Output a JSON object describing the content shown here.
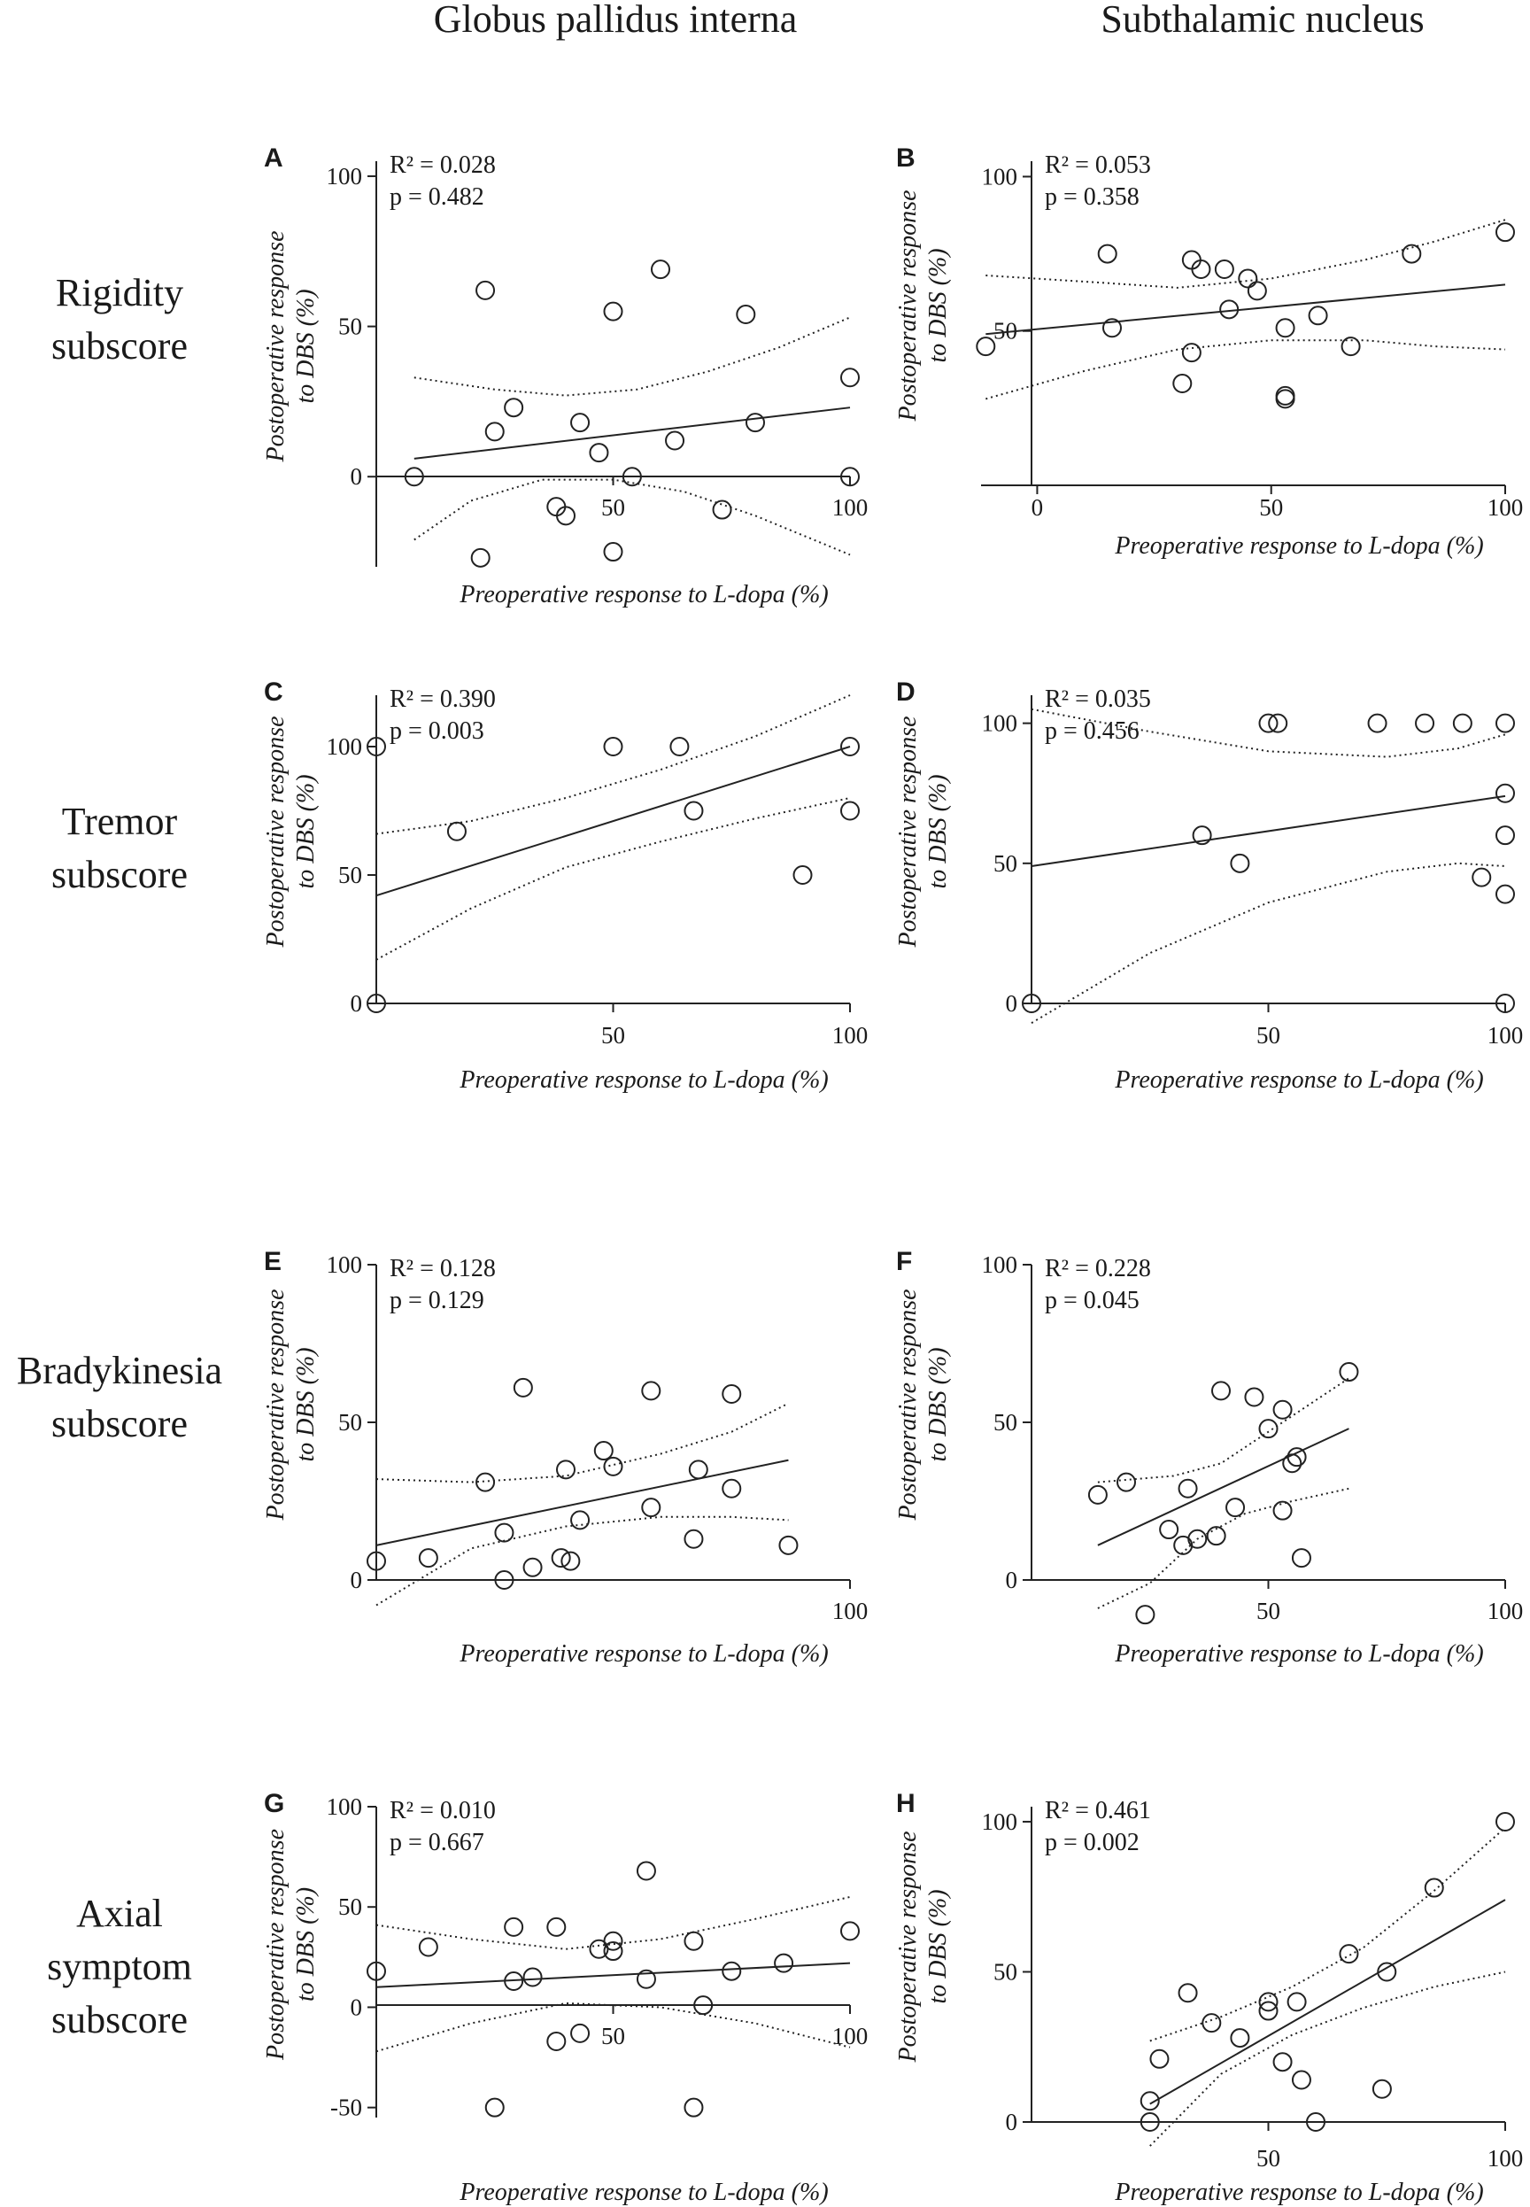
{
  "figure": {
    "column_titles": [
      "Globus pallidus interna",
      "Subthalamic nucleus"
    ],
    "row_titles": [
      [
        "Rigidity",
        "subscore"
      ],
      [
        "Tremor",
        "subscore"
      ],
      [
        "Bradykinesia",
        "subscore"
      ],
      [
        "Axial",
        "symptom",
        "subscore"
      ]
    ]
  },
  "chart_data": [
    {
      "panel": "A",
      "type": "scatter",
      "stat_r2": "R² = 0.028",
      "stat_p": "p = 0.482",
      "xlabel": "Preoperative response to L-dopa (%)",
      "ylabel": [
        "Postoperative response",
        "to DBS (%)"
      ],
      "xlim": [
        0,
        100
      ],
      "ylim": [
        -30,
        105
      ],
      "xticks": [
        50,
        100
      ],
      "yticks": [
        0,
        50,
        100
      ],
      "points": [
        [
          8,
          0
        ],
        [
          22,
          -27
        ],
        [
          23,
          62
        ],
        [
          25,
          15
        ],
        [
          29,
          23
        ],
        [
          38,
          -10
        ],
        [
          40,
          -13
        ],
        [
          43,
          18
        ],
        [
          47,
          8
        ],
        [
          50,
          -25
        ],
        [
          50,
          55
        ],
        [
          54,
          0
        ],
        [
          60,
          69
        ],
        [
          63,
          12
        ],
        [
          73,
          -11
        ],
        [
          78,
          54
        ],
        [
          80,
          18
        ],
        [
          100,
          33
        ],
        [
          100,
          0
        ]
      ],
      "fit": [
        [
          8,
          6
        ],
        [
          100,
          23
        ]
      ],
      "ci_upper": [
        [
          8,
          33
        ],
        [
          25,
          29
        ],
        [
          40,
          27
        ],
        [
          55,
          29
        ],
        [
          70,
          35
        ],
        [
          85,
          43
        ],
        [
          100,
          53
        ]
      ],
      "ci_lower": [
        [
          8,
          -21
        ],
        [
          20,
          -8
        ],
        [
          35,
          -1
        ],
        [
          50,
          -1
        ],
        [
          65,
          -5
        ],
        [
          80,
          -13
        ],
        [
          100,
          -26
        ]
      ]
    },
    {
      "panel": "B",
      "type": "scatter",
      "stat_r2": "R² = 0.053",
      "stat_p": "p = 0.358",
      "xlabel": "Preoperative response to L-dopa (%)",
      "ylabel": [
        "Postoperative response",
        "to DBS (%)"
      ],
      "xlim": [
        -12,
        100
      ],
      "ylim": [
        0,
        105
      ],
      "xticks": [
        0,
        50,
        100
      ],
      "yticks": [
        50,
        100
      ],
      "points": [
        [
          -11,
          45
        ],
        [
          15,
          75
        ],
        [
          16,
          51
        ],
        [
          31,
          33
        ],
        [
          33,
          43
        ],
        [
          33,
          73
        ],
        [
          35,
          70
        ],
        [
          40,
          70
        ],
        [
          41,
          57
        ],
        [
          45,
          67
        ],
        [
          47,
          63
        ],
        [
          53,
          51
        ],
        [
          53,
          28
        ],
        [
          53,
          29
        ],
        [
          60,
          55
        ],
        [
          67,
          45
        ],
        [
          80,
          75
        ],
        [
          100,
          82
        ]
      ],
      "fit": [
        [
          -11,
          49
        ],
        [
          100,
          65
        ]
      ],
      "ci_upper": [
        [
          -11,
          68
        ],
        [
          10,
          66
        ],
        [
          30,
          64
        ],
        [
          50,
          67
        ],
        [
          70,
          73
        ],
        [
          85,
          79
        ],
        [
          100,
          86
        ]
      ],
      "ci_lower": [
        [
          -11,
          28
        ],
        [
          10,
          37
        ],
        [
          30,
          44
        ],
        [
          50,
          47
        ],
        [
          70,
          47
        ],
        [
          85,
          45
        ],
        [
          100,
          44
        ]
      ]
    },
    {
      "panel": "C",
      "type": "scatter",
      "stat_r2": "R² = 0.390",
      "stat_p": "p = 0.003",
      "xlabel": "Preoperative response to L-dopa (%)",
      "ylabel": [
        "Postoperative response",
        "to DBS (%)"
      ],
      "xlim": [
        0,
        100
      ],
      "ylim": [
        0,
        120
      ],
      "xticks": [
        50,
        100
      ],
      "yticks": [
        0,
        50,
        100
      ],
      "points": [
        [
          0,
          100
        ],
        [
          0,
          0
        ],
        [
          17,
          67
        ],
        [
          50,
          100
        ],
        [
          64,
          100
        ],
        [
          67,
          75
        ],
        [
          90,
          50
        ],
        [
          100,
          100
        ],
        [
          100,
          75
        ]
      ],
      "fit": [
        [
          0,
          42
        ],
        [
          100,
          100
        ]
      ],
      "ci_upper": [
        [
          0,
          66
        ],
        [
          20,
          71
        ],
        [
          40,
          80
        ],
        [
          60,
          91
        ],
        [
          80,
          104
        ],
        [
          100,
          120
        ]
      ],
      "ci_lower": [
        [
          0,
          17
        ],
        [
          20,
          37
        ],
        [
          40,
          53
        ],
        [
          60,
          63
        ],
        [
          80,
          72
        ],
        [
          100,
          80
        ]
      ]
    },
    {
      "panel": "D",
      "type": "scatter",
      "stat_r2": "R² = 0.035",
      "stat_p": "p = 0.456",
      "xlabel": "Preoperative response to L-dopa (%)",
      "ylabel": [
        "Postoperative response",
        "to DBS (%)"
      ],
      "xlim": [
        0,
        100
      ],
      "ylim": [
        0,
        110
      ],
      "xticks": [
        50,
        100
      ],
      "yticks": [
        0,
        50,
        100
      ],
      "points": [
        [
          0,
          0
        ],
        [
          36,
          60
        ],
        [
          44,
          50
        ],
        [
          50,
          100
        ],
        [
          52,
          100
        ],
        [
          73,
          100
        ],
        [
          83,
          100
        ],
        [
          91,
          100
        ],
        [
          100,
          100
        ],
        [
          100,
          75
        ],
        [
          100,
          60
        ],
        [
          95,
          45
        ],
        [
          100,
          39
        ],
        [
          100,
          0
        ]
      ],
      "fit": [
        [
          0,
          49
        ],
        [
          100,
          74
        ]
      ],
      "ci_upper": [
        [
          0,
          105
        ],
        [
          25,
          97
        ],
        [
          50,
          90
        ],
        [
          75,
          88
        ],
        [
          90,
          91
        ],
        [
          100,
          96
        ]
      ],
      "ci_lower": [
        [
          0,
          -7
        ],
        [
          25,
          18
        ],
        [
          50,
          36
        ],
        [
          75,
          47
        ],
        [
          90,
          50
        ],
        [
          100,
          49
        ]
      ]
    },
    {
      "panel": "E",
      "type": "scatter",
      "stat_r2": "R² = 0.128",
      "stat_p": "p = 0.129",
      "xlabel": "Preoperative response to L-dopa (%)",
      "ylabel": [
        "Postoperative response",
        "to DBS (%)"
      ],
      "xlim": [
        0,
        100
      ],
      "ylim": [
        0,
        100
      ],
      "xticks": [
        100
      ],
      "yticks": [
        0,
        50,
        100
      ],
      "points": [
        [
          0,
          6
        ],
        [
          11,
          7
        ],
        [
          23,
          31
        ],
        [
          27,
          0
        ],
        [
          27,
          15
        ],
        [
          31,
          61
        ],
        [
          33,
          4
        ],
        [
          39,
          7
        ],
        [
          40,
          35
        ],
        [
          41,
          6
        ],
        [
          43,
          19
        ],
        [
          48,
          41
        ],
        [
          50,
          36
        ],
        [
          58,
          60
        ],
        [
          58,
          23
        ],
        [
          67,
          13
        ],
        [
          68,
          35
        ],
        [
          75,
          59
        ],
        [
          75,
          29
        ],
        [
          87,
          11
        ]
      ],
      "fit": [
        [
          0,
          11
        ],
        [
          87,
          38
        ]
      ],
      "ci_upper": [
        [
          0,
          32
        ],
        [
          20,
          31
        ],
        [
          40,
          33
        ],
        [
          60,
          40
        ],
        [
          75,
          47
        ],
        [
          87,
          56
        ]
      ],
      "ci_lower": [
        [
          0,
          -8
        ],
        [
          20,
          10
        ],
        [
          40,
          17
        ],
        [
          60,
          20
        ],
        [
          75,
          20
        ],
        [
          87,
          19
        ]
      ]
    },
    {
      "panel": "F",
      "type": "scatter",
      "stat_r2": "R² = 0.228",
      "stat_p": "p = 0.045",
      "xlabel": "Preoperative response to L-dopa (%)",
      "ylabel": [
        "Postoperative response",
        "to DBS (%)"
      ],
      "xlim": [
        0,
        100
      ],
      "ylim": [
        0,
        100
      ],
      "xticks": [
        50,
        100
      ],
      "yticks": [
        0,
        50,
        100
      ],
      "points": [
        [
          14,
          27
        ],
        [
          20,
          31
        ],
        [
          29,
          16
        ],
        [
          32,
          11
        ],
        [
          33,
          29
        ],
        [
          35,
          13
        ],
        [
          39,
          14
        ],
        [
          40,
          60
        ],
        [
          43,
          23
        ],
        [
          47,
          58
        ],
        [
          50,
          48
        ],
        [
          53,
          54
        ],
        [
          53,
          22
        ],
        [
          55,
          37
        ],
        [
          56,
          39
        ],
        [
          57,
          7
        ],
        [
          67,
          66
        ],
        [
          24,
          -11
        ]
      ],
      "fit": [
        [
          14,
          11
        ],
        [
          67,
          48
        ]
      ],
      "ci_upper": [
        [
          14,
          31
        ],
        [
          30,
          33
        ],
        [
          40,
          37
        ],
        [
          50,
          47
        ],
        [
          60,
          57
        ],
        [
          67,
          64
        ]
      ],
      "ci_lower": [
        [
          14,
          -9
        ],
        [
          25,
          -1
        ],
        [
          35,
          13
        ],
        [
          45,
          21
        ],
        [
          55,
          25
        ],
        [
          67,
          29
        ]
      ]
    },
    {
      "panel": "G",
      "type": "scatter",
      "stat_r2": "R² = 0.010",
      "stat_p": "p = 0.667",
      "xlabel": "Preoperative response to L-dopa (%)",
      "ylabel": [
        "Postoperative response",
        "to DBS (%)"
      ],
      "xlim": [
        0,
        100
      ],
      "ylim": [
        -55,
        100
      ],
      "xticks": [
        50,
        100
      ],
      "yticks": [
        -50,
        0,
        50,
        100
      ],
      "points": [
        [
          0,
          18
        ],
        [
          11,
          30
        ],
        [
          25,
          -50
        ],
        [
          29,
          13
        ],
        [
          29,
          40
        ],
        [
          33,
          15
        ],
        [
          38,
          40
        ],
        [
          38,
          -17
        ],
        [
          43,
          -13
        ],
        [
          47,
          29
        ],
        [
          50,
          33
        ],
        [
          50,
          28
        ],
        [
          57,
          68
        ],
        [
          57,
          14
        ],
        [
          67,
          -50
        ],
        [
          67,
          33
        ],
        [
          69,
          1
        ],
        [
          75,
          18
        ],
        [
          86,
          22
        ],
        [
          100,
          38
        ]
      ],
      "fit": [
        [
          0,
          10
        ],
        [
          100,
          22
        ]
      ],
      "ci_upper": [
        [
          0,
          41
        ],
        [
          20,
          34
        ],
        [
          40,
          29
        ],
        [
          60,
          34
        ],
        [
          80,
          44
        ],
        [
          100,
          55
        ]
      ],
      "ci_lower": [
        [
          0,
          -22
        ],
        [
          20,
          -8
        ],
        [
          40,
          2
        ],
        [
          60,
          0
        ],
        [
          80,
          -8
        ],
        [
          100,
          -20
        ]
      ]
    },
    {
      "panel": "H",
      "type": "scatter",
      "stat_r2": "R² = 0.461",
      "stat_p": "p = 0.002",
      "xlabel": "Preoperative response to L-dopa (%)",
      "ylabel": [
        "Postoperative response",
        "to DBS (%)"
      ],
      "xlim": [
        0,
        100
      ],
      "ylim": [
        0,
        105
      ],
      "xticks": [
        50,
        100
      ],
      "yticks": [
        0,
        50,
        100
      ],
      "points": [
        [
          25,
          7
        ],
        [
          25,
          0
        ],
        [
          27,
          21
        ],
        [
          33,
          43
        ],
        [
          38,
          33
        ],
        [
          44,
          28
        ],
        [
          50,
          40
        ],
        [
          50,
          37
        ],
        [
          53,
          20
        ],
        [
          56,
          40
        ],
        [
          57,
          14
        ],
        [
          60,
          0
        ],
        [
          67,
          56
        ],
        [
          74,
          11
        ],
        [
          75,
          50
        ],
        [
          85,
          78
        ],
        [
          100,
          100
        ]
      ],
      "fit": [
        [
          25,
          6
        ],
        [
          100,
          74
        ]
      ],
      "ci_upper": [
        [
          25,
          27
        ],
        [
          40,
          35
        ],
        [
          55,
          45
        ],
        [
          70,
          58
        ],
        [
          85,
          77
        ],
        [
          100,
          98
        ]
      ],
      "ci_lower": [
        [
          25,
          -8
        ],
        [
          40,
          16
        ],
        [
          55,
          29
        ],
        [
          70,
          38
        ],
        [
          85,
          45
        ],
        [
          100,
          50
        ]
      ]
    }
  ]
}
